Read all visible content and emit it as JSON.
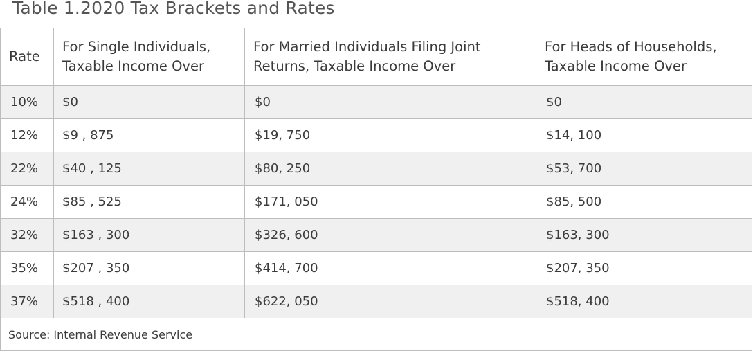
{
  "caption": "Table 1.2020 Tax Brackets and Rates",
  "table": {
    "headers": {
      "rate": "Rate",
      "single": "For Single Individuals, Taxable Income Over",
      "married": "For Married Individuals Filing Joint Returns, Taxable Income Over",
      "heads": "For Heads of Households, Taxable Income Over"
    },
    "rows": [
      {
        "rate": "10%",
        "single": "$0",
        "married": "$0",
        "heads": "$0"
      },
      {
        "rate": "12%",
        "single": "$9 , 875",
        "married": "$19, 750",
        "heads": "$14, 100"
      },
      {
        "rate": "22%",
        "single": "$40 , 125",
        "married": "$80, 250",
        "heads": "$53, 700"
      },
      {
        "rate": "24%",
        "single": "$85 , 525",
        "married": "$171, 050",
        "heads": "$85, 500"
      },
      {
        "rate": "32%",
        "single": "$163 , 300",
        "married": "$326, 600",
        "heads": "$163, 300"
      },
      {
        "rate": "35%",
        "single": "$207 , 350",
        "married": "$414, 700",
        "heads": "$207, 350"
      },
      {
        "rate": "37%",
        "single": "$518 , 400",
        "married": "$622, 050",
        "heads": "$518, 400"
      }
    ],
    "source": "Source: Internal Revenue Service"
  }
}
